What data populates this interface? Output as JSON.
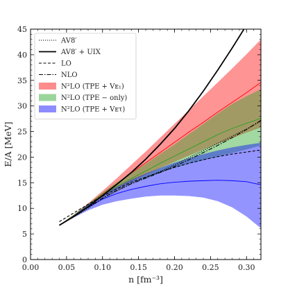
{
  "chart_data": {
    "type": "line",
    "xlabel": "n  [fm⁻³]",
    "ylabel": "E/A  [MeV]",
    "xlim": [
      0.0,
      0.32
    ],
    "ylim": [
      0,
      45
    ],
    "xticks": [
      "0.00",
      "0.05",
      "0.10",
      "0.15",
      "0.20",
      "0.25",
      "0.30"
    ],
    "xtick_values": [
      0.0,
      0.05,
      0.1,
      0.15,
      0.2,
      0.25,
      0.3
    ],
    "yticks": [
      "0",
      "5",
      "10",
      "15",
      "20",
      "25",
      "30",
      "35",
      "40",
      "45"
    ],
    "ytick_values": [
      0,
      5,
      10,
      15,
      20,
      25,
      30,
      35,
      40,
      45
    ],
    "grid": false,
    "legend_position": "top-left",
    "x": [
      0.04,
      0.06,
      0.08,
      0.1,
      0.12,
      0.14,
      0.16,
      0.18,
      0.2,
      0.22,
      0.24,
      0.26,
      0.28,
      0.3,
      0.32
    ],
    "series": [
      {
        "name": "AV8′",
        "kind": "line",
        "style": "dotted",
        "color": "#000000",
        "values": [
          6.7,
          8.3,
          10.0,
          11.9,
          13.4,
          14.8,
          16.0,
          17.2,
          18.5,
          19.9,
          21.3,
          22.7,
          24.1,
          25.5,
          27.0
        ]
      },
      {
        "name": "AV8′ + UIX",
        "kind": "line",
        "style": "solid",
        "color": "#000000",
        "width": 1.8,
        "values": [
          6.7,
          8.4,
          10.3,
          12.5,
          14.7,
          17.0,
          19.6,
          22.5,
          25.6,
          29.1,
          32.9,
          37.0,
          41.3,
          45.8,
          null
        ]
      },
      {
        "name": "LO",
        "kind": "line",
        "style": "dashed",
        "color": "#000000",
        "values": [
          7.4,
          9.1,
          10.8,
          12.4,
          13.8,
          15.1,
          16.1,
          17.1,
          18.0,
          18.8,
          19.5,
          20.1,
          20.6,
          21.0,
          21.4
        ]
      },
      {
        "name": "NLO",
        "kind": "line",
        "style": "dashdot",
        "color": "#000000",
        "values": [
          6.7,
          8.4,
          10.2,
          12.0,
          13.5,
          14.8,
          15.9,
          17.0,
          18.2,
          19.5,
          20.9,
          22.3,
          23.8,
          25.4,
          27.2
        ]
      },
      {
        "name": "N²LO (TPE + Vᴇ₁)",
        "kind": "band",
        "color": "#ff0000",
        "opacity": 0.42,
        "lower": [
          6.7,
          8.5,
          10.4,
          12.2,
          13.8,
          15.3,
          16.6,
          17.9,
          19.1,
          20.3,
          21.5,
          22.6,
          23.7,
          24.8,
          25.8
        ],
        "upper": [
          6.7,
          8.8,
          11.0,
          13.4,
          15.9,
          18.5,
          21.1,
          23.8,
          26.5,
          29.2,
          31.9,
          34.6,
          37.3,
          40.1,
          43.0
        ],
        "central": [
          6.7,
          8.6,
          10.7,
          12.8,
          14.8,
          16.9,
          18.9,
          20.9,
          22.9,
          24.9,
          26.8,
          28.8,
          30.7,
          32.6,
          34.6
        ]
      },
      {
        "name": "N²LO (TPE − only)",
        "kind": "band",
        "color": "#21a121",
        "opacity": 0.42,
        "lower": [
          6.7,
          8.5,
          10.4,
          12.1,
          13.6,
          14.9,
          16.0,
          17.0,
          17.9,
          18.7,
          19.4,
          20.1,
          20.8,
          21.5,
          22.3
        ],
        "upper": [
          6.7,
          8.7,
          10.9,
          13.1,
          15.1,
          16.9,
          18.7,
          20.6,
          22.5,
          24.5,
          26.5,
          28.5,
          30.4,
          31.9,
          33.3
        ],
        "central": [
          6.7,
          8.6,
          10.6,
          12.6,
          14.3,
          15.8,
          17.3,
          18.8,
          20.2,
          21.6,
          23.0,
          24.4,
          25.6,
          26.6,
          27.6
        ]
      },
      {
        "name": "N²LO (TPE + Vᴇτ)",
        "kind": "band",
        "color": "#0000ff",
        "opacity": 0.42,
        "lower": [
          6.7,
          8.2,
          9.6,
          10.7,
          11.4,
          11.9,
          12.3,
          12.5,
          12.5,
          12.4,
          12.1,
          11.4,
          10.2,
          8.4,
          6.1
        ],
        "upper": [
          6.7,
          8.6,
          10.7,
          12.6,
          14.2,
          15.6,
          16.8,
          17.9,
          18.9,
          19.8,
          20.6,
          21.3,
          21.9,
          22.4,
          22.8
        ],
        "central": [
          6.7,
          8.4,
          10.2,
          11.8,
          12.9,
          13.7,
          14.3,
          14.8,
          15.1,
          15.3,
          15.4,
          15.5,
          15.4,
          15.2,
          14.6
        ]
      }
    ]
  }
}
